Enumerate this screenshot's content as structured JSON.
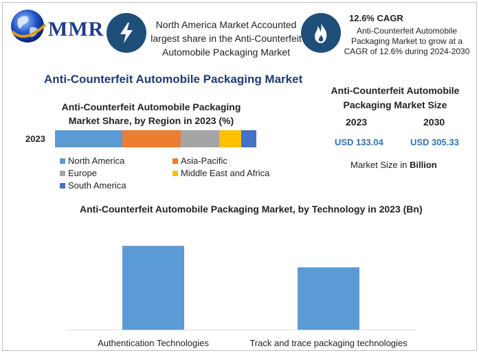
{
  "logo": {
    "text": "MMR"
  },
  "header": {
    "highlight_text": "North America Market Accounted largest share in the Anti-Counterfeit Automobile Packaging Market",
    "cagr_title": "12.6% CAGR",
    "cagr_text": "Anti-Counterfeit Automobile Packaging Market to grow at a CAGR of 12.6% during 2024-2030",
    "icons": [
      "lightning-bolt-icon",
      "flame-icon"
    ]
  },
  "main_title": "Anti-Counterfeit Automobile Packaging Market",
  "colors": {
    "header_icon_bg": "#1f4e79",
    "north_america": "#5b9bd5",
    "asia_pacific": "#ed7d31",
    "europe": "#a5a5a5",
    "middle_east_africa": "#ffc000",
    "south_america": "#4472c4",
    "value_blue": "#2e75b6"
  },
  "market_size": {
    "title": "Anti-Counterfeit Automobile Packaging Market Size",
    "year_2023": "2023",
    "year_2030": "2030",
    "value_2023": "USD 133.04",
    "value_2030": "USD 305.33",
    "note_prefix": "Market Size in ",
    "note_unit": "Billion"
  },
  "chart_data": [
    {
      "type": "bar",
      "orientation": "horizontal-stacked",
      "title": "Anti-Counterfeit Automobile Packaging Market Share, by Region in 2023 (%)",
      "categories": [
        "2023"
      ],
      "series": [
        {
          "name": "North America",
          "values": [
            33.5
          ]
        },
        {
          "name": "Asia-Pacific",
          "values": [
            29
          ]
        },
        {
          "name": "Europe",
          "values": [
            19
          ]
        },
        {
          "name": "Middle East and Africa",
          "values": [
            11
          ]
        },
        {
          "name": "South America",
          "values": [
            7.5
          ]
        }
      ],
      "xlim": [
        0,
        100
      ],
      "grid": false,
      "legend": "bottom"
    },
    {
      "type": "bar",
      "title": "Anti-Counterfeit Automobile Packaging Market, by Technology in 2023 (Bn)",
      "categories": [
        "Authentication Technologies",
        "Track and trace packaging technologies"
      ],
      "values": [
        74,
        55
      ],
      "ylim": [
        0,
        75
      ],
      "grid": false,
      "legend": "none"
    }
  ]
}
